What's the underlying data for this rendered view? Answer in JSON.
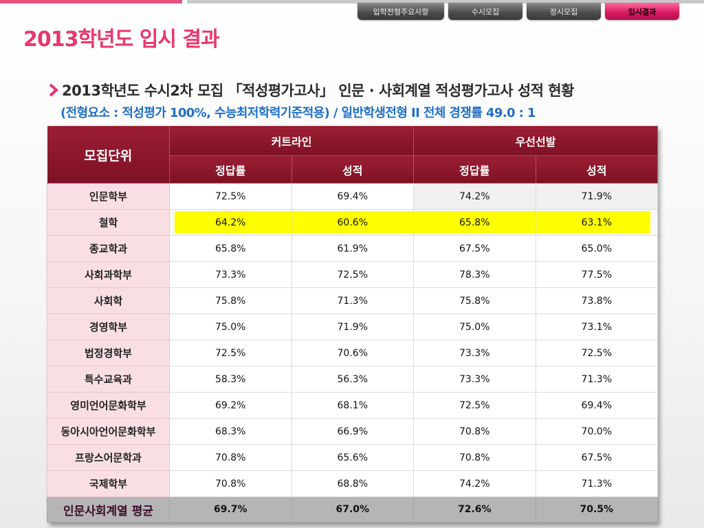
{
  "nav": {
    "tabs": [
      {
        "label": "입학전형주요사항"
      },
      {
        "label": "수시모집"
      },
      {
        "label": "정시모집"
      },
      {
        "label": "입시결과"
      }
    ],
    "active": "입시결과"
  },
  "page_title": "2013학년도 입시 결과",
  "subtitle": "2013학년도 수시2차 모집 「적성평가고사」 인문 · 사회계열 적성평가고사 성적 현황",
  "subnote": "(전형요소 : 적성평가 100%, 수능최저학력기준적용) / 일반학생전형 II  전체 경쟁률 49.0 : 1",
  "colors": {
    "accent": "#e8366e",
    "header": "#8a1629",
    "note": "#1f6fc7",
    "highlight": "#ffff00"
  },
  "table": {
    "unit_header": "모집단위",
    "group_headers": [
      "커트라인",
      "우선선발"
    ],
    "sub_headers": [
      "정답률",
      "성적",
      "정답률",
      "성적"
    ],
    "rows": [
      {
        "unit": "인문학부",
        "values": [
          "72.5%",
          "69.4%",
          "74.2%",
          "71.9%"
        ]
      },
      {
        "unit": "철학",
        "values": [
          "64.2%",
          "60.6%",
          "65.8%",
          "63.1%"
        ]
      },
      {
        "unit": "종교학과",
        "values": [
          "65.8%",
          "61.9%",
          "67.5%",
          "65.0%"
        ]
      },
      {
        "unit": "사회과학부",
        "values": [
          "73.3%",
          "72.5%",
          "78.3%",
          "77.5%"
        ]
      },
      {
        "unit": "사회학",
        "values": [
          "75.8%",
          "71.3%",
          "75.8%",
          "73.8%"
        ]
      },
      {
        "unit": "경영학부",
        "values": [
          "75.0%",
          "71.9%",
          "75.0%",
          "73.1%"
        ]
      },
      {
        "unit": "법정경학부",
        "values": [
          "72.5%",
          "70.6%",
          "73.3%",
          "72.5%"
        ]
      },
      {
        "unit": "특수교육과",
        "values": [
          "58.3%",
          "56.3%",
          "73.3%",
          "71.3%"
        ]
      },
      {
        "unit": "영미언어문화학부",
        "values": [
          "69.2%",
          "68.1%",
          "72.5%",
          "69.4%"
        ]
      },
      {
        "unit": "동아시아언어문화학부",
        "values": [
          "68.3%",
          "66.9%",
          "70.8%",
          "70.0%"
        ]
      },
      {
        "unit": "프랑스어문학과",
        "values": [
          "70.8%",
          "65.6%",
          "70.8%",
          "67.5%"
        ]
      },
      {
        "unit": "국제학부",
        "values": [
          "70.8%",
          "68.8%",
          "74.2%",
          "71.3%"
        ]
      }
    ],
    "average": {
      "unit": "인문사회계열 평균",
      "values": [
        "69.7%",
        "67.0%",
        "72.6%",
        "70.5%"
      ]
    }
  }
}
